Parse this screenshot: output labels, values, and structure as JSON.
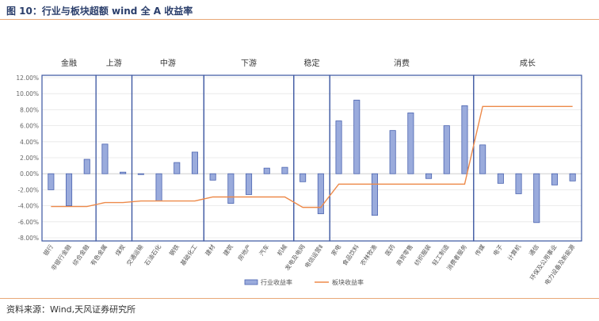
{
  "figure": {
    "title": "图 10：行业与板块超额 wind 全 A 收益率",
    "source": "资料来源：Wind,天风证券研究所"
  },
  "colors": {
    "bar_fill": "#9aabdc",
    "bar_stroke": "#4a63b0",
    "line": "#ed8a4a",
    "group_box": "#3a55a0",
    "rule": "#e8a878"
  },
  "chart_data": {
    "type": "bar",
    "categories": [
      "银行",
      "非银行金融",
      "综合金融",
      "有色金属",
      "煤炭",
      "交通运输",
      "石油石化",
      "钢铁",
      "基础化工",
      "建材",
      "建筑",
      "房地产",
      "汽车",
      "机械",
      "发电及电网",
      "电信运营Ⅱ",
      "家电",
      "食品饮料",
      "农林牧渔",
      "医药",
      "商贸零售",
      "纺织服装",
      "轻工制造",
      "消费者服务",
      "传媒",
      "电子",
      "计算机",
      "通信",
      "环保及公用事业",
      "电力设备及新能源"
    ],
    "y_tick_labels": [
      "12.00%",
      "10.00%",
      "8.00%",
      "6.00%",
      "4.00%",
      "2.00%",
      "0.00%",
      "-2.00%",
      "-4.00%",
      "-6.00%",
      "-8.00%"
    ],
    "ylim": [
      -8,
      12
    ],
    "series": [
      {
        "name": "行业收益率",
        "type": "bar",
        "values": [
          -2.0,
          -4.0,
          1.8,
          3.7,
          0.2,
          -0.1,
          -3.4,
          1.4,
          2.7,
          -0.8,
          -3.7,
          -2.6,
          0.7,
          0.8,
          -1.0,
          -5.0,
          6.6,
          9.2,
          -5.2,
          5.4,
          7.6,
          -0.6,
          6.0,
          8.5,
          3.6,
          -1.2,
          -2.5,
          -6.1,
          -1.4,
          -0.9
        ]
      },
      {
        "name": "板块收益率",
        "type": "line",
        "values": [
          -4.1,
          -4.1,
          -4.1,
          -3.6,
          -3.6,
          -3.4,
          -3.4,
          -3.4,
          -3.4,
          -2.9,
          -2.9,
          -2.9,
          -2.9,
          -2.9,
          -4.2,
          -4.2,
          -1.3,
          -1.3,
          -1.3,
          -1.3,
          -1.3,
          -1.3,
          -1.3,
          -1.3,
          8.4,
          8.4,
          8.4,
          8.4,
          8.4,
          8.4
        ]
      }
    ],
    "groups": [
      {
        "label": "金融",
        "start": 0,
        "end": 2
      },
      {
        "label": "上游",
        "start": 3,
        "end": 4
      },
      {
        "label": "中游",
        "start": 5,
        "end": 8
      },
      {
        "label": "下游",
        "start": 9,
        "end": 13
      },
      {
        "label": "稳定",
        "start": 14,
        "end": 15
      },
      {
        "label": "消费",
        "start": 16,
        "end": 23
      },
      {
        "label": "成长",
        "start": 24,
        "end": 29
      }
    ],
    "legend_position": "bottom"
  }
}
